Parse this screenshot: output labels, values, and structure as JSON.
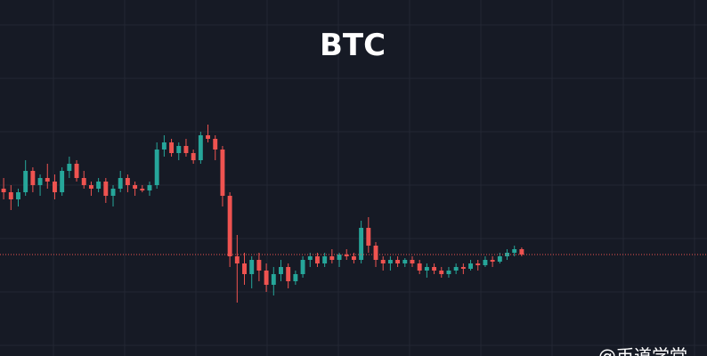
{
  "chart_data": {
    "type": "candlestick",
    "title": "BTC",
    "ylim": [
      0,
      100
    ],
    "up_color": "#26a69a",
    "down_color": "#ef5350",
    "price_line": 28.5,
    "price_line_color": "#ef5350",
    "open": [
      47,
      46,
      44,
      46,
      52,
      48,
      50,
      49,
      46,
      52,
      54,
      50,
      48,
      47,
      49,
      45,
      47,
      50,
      48,
      47,
      46.5,
      48,
      58,
      60,
      57,
      59,
      57,
      55,
      62,
      61,
      58,
      45,
      28,
      26,
      23,
      27,
      24,
      20,
      23,
      25,
      21,
      23,
      27,
      28,
      26,
      28,
      27,
      28.5,
      28,
      27,
      36,
      31,
      27,
      26,
      27,
      26,
      27,
      26,
      24,
      25,
      24,
      23,
      24,
      25,
      24.5,
      26,
      25.5,
      27,
      26.5,
      28,
      29,
      30
    ],
    "high": [
      50,
      48,
      47,
      55,
      53,
      51,
      54,
      51,
      53,
      56,
      55,
      52,
      49,
      50,
      50,
      48,
      52,
      51,
      49,
      48,
      49,
      60,
      62,
      61,
      60,
      61,
      58,
      63,
      65,
      62,
      59,
      46,
      34,
      29,
      28,
      29,
      26,
      25,
      27,
      26,
      24,
      28,
      29,
      29,
      29,
      30,
      29,
      30,
      29,
      38,
      39,
      32,
      28,
      28,
      28,
      27.5,
      28,
      27,
      26,
      26,
      25,
      25,
      26,
      26,
      27,
      27,
      28,
      28,
      29,
      30,
      31,
      30.5
    ],
    "low": [
      44,
      41,
      42,
      45,
      46,
      45,
      47,
      44,
      45,
      50,
      49,
      47,
      45,
      46,
      43,
      42,
      46,
      46,
      45,
      46,
      45,
      47,
      56,
      56,
      55,
      56,
      54,
      54,
      60,
      55,
      42,
      25,
      15,
      20,
      19,
      21,
      18,
      17,
      21,
      19,
      20,
      22,
      25,
      25,
      25,
      26,
      25,
      27,
      26,
      26,
      29,
      25,
      24,
      24,
      25,
      25,
      25,
      23,
      22,
      23,
      22,
      22,
      23,
      23,
      24,
      24,
      25,
      25,
      26,
      27,
      28,
      28
    ],
    "close": [
      46,
      44,
      46,
      52,
      48,
      50,
      49,
      46,
      52,
      54,
      50,
      48,
      47,
      49,
      45,
      47,
      50,
      48,
      47,
      46.5,
      48,
      58,
      60,
      57,
      59,
      57,
      55,
      62,
      61,
      58,
      45,
      28,
      26,
      23,
      27,
      24,
      20,
      23,
      25,
      21,
      23,
      27,
      28,
      26,
      28,
      27,
      28.5,
      28,
      27,
      36,
      31,
      27,
      26,
      27,
      26,
      27,
      26,
      24,
      25,
      24,
      23,
      24,
      25,
      24.5,
      26,
      25.5,
      27,
      26.5,
      28,
      29,
      30,
      28.5
    ]
  },
  "watermark": "@币道学堂"
}
